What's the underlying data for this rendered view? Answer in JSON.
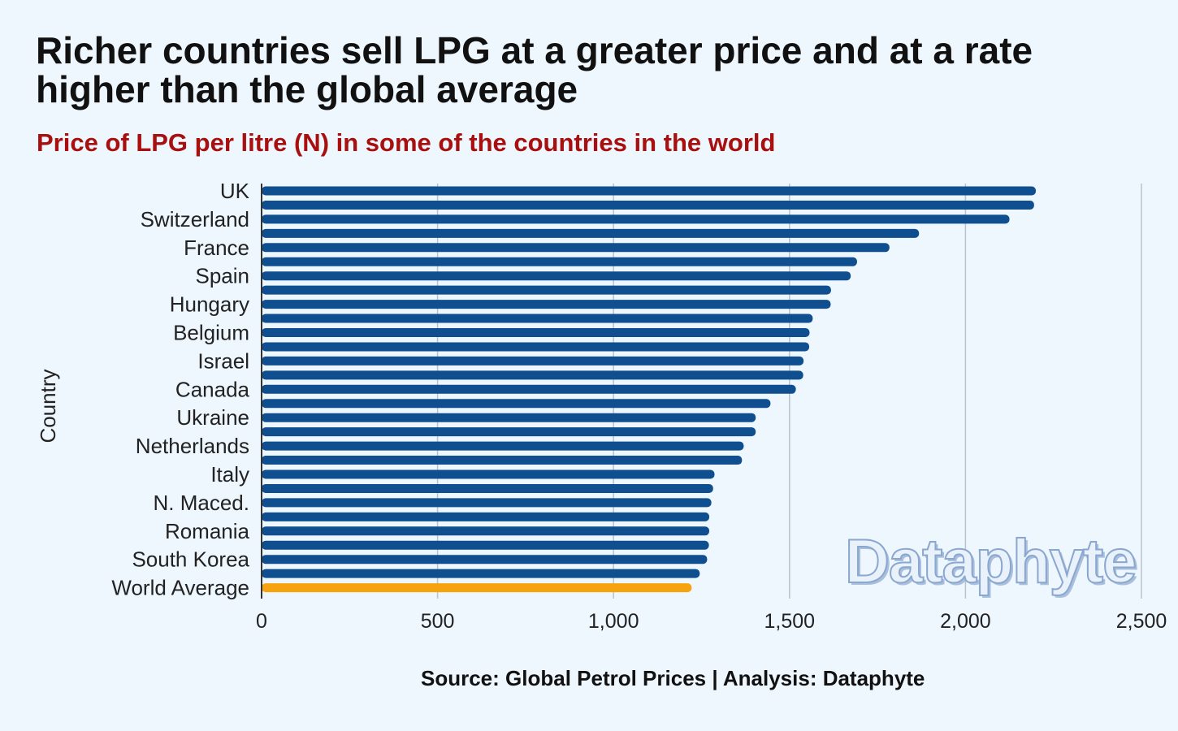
{
  "header": {
    "title": "Richer countries sell LPG at a greater price and at a rate higher than the global average",
    "subtitle": "Price of LPG per litre (N) in some of the countries in the world"
  },
  "footer": {
    "source": "Source: Global Petrol Prices | Analysis: Dataphyte"
  },
  "watermark": {
    "text": "Dataphyte"
  },
  "colors": {
    "bar": "#0f4f8f",
    "highlight": "#f7a20f",
    "grid": "#b9c3cd"
  },
  "chart_data": {
    "type": "bar",
    "orientation": "horizontal",
    "ylabel": "Country",
    "xlabel": "",
    "xlim": [
      0,
      2500
    ],
    "xticks": [
      0,
      500,
      1000,
      1500,
      2000,
      2500
    ],
    "xtick_labels": [
      "0",
      "500",
      "1,000",
      "1,500",
      "2,000",
      "2,500"
    ],
    "grid": true,
    "categories": [
      "UK",
      "",
      "Switzerland",
      "",
      "France",
      "",
      "Spain",
      "",
      "Hungary",
      "",
      "Belgium",
      "",
      "Israel",
      "",
      "Canada",
      "",
      "Ukraine",
      "",
      "Netherlands",
      "",
      "Italy",
      "",
      "N. Maced.",
      "",
      "Romania",
      "",
      "South Korea",
      "",
      "World Average"
    ],
    "values": [
      2200,
      2195,
      2125,
      1868,
      1784,
      1692,
      1674,
      1618,
      1617,
      1566,
      1557,
      1556,
      1540,
      1539,
      1518,
      1446,
      1404,
      1404,
      1370,
      1365,
      1287,
      1283,
      1278,
      1272,
      1272,
      1271,
      1266,
      1245,
      1222
    ],
    "highlight_index": 28
  }
}
